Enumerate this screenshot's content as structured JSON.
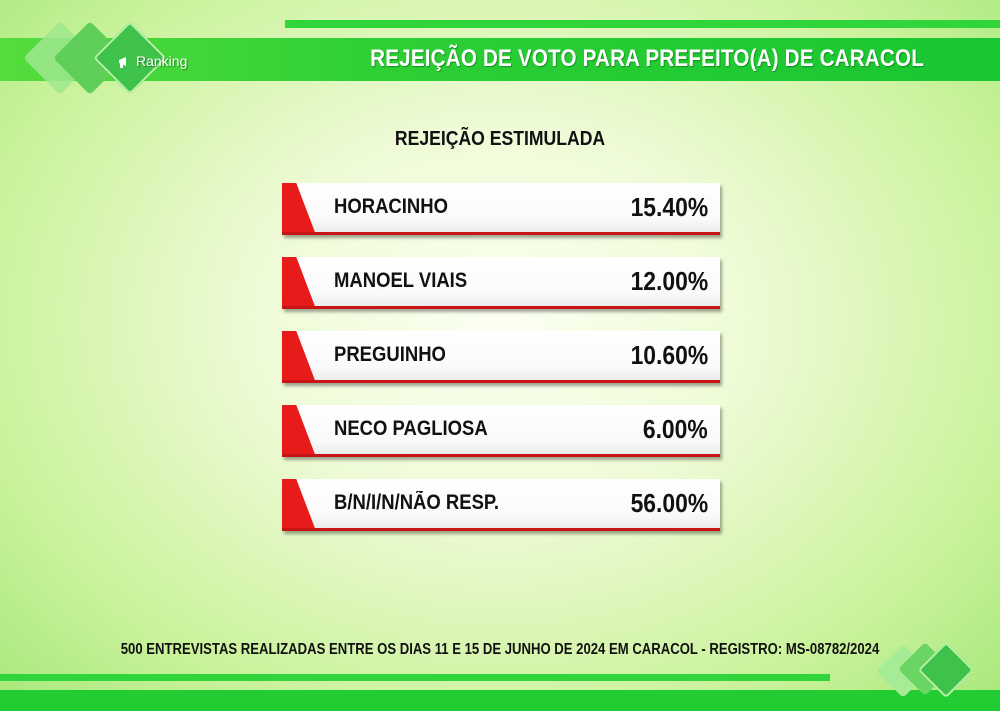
{
  "header": {
    "title": "REJEIÇÃO DE VOTO PARA PREFEITO(A) DE CARACOL",
    "logo_text": "Ranking",
    "logo_icon": "megaphone-icon"
  },
  "chart_data": {
    "type": "bar",
    "title": "REJEIÇÃO ESTIMULADA",
    "categories": [
      "HORACINHO",
      "MANOEL VIAIS",
      "PREGUINHO",
      "NECO PAGLIOSA",
      "B/N/I/N/NÃO RESP."
    ],
    "values": [
      15.4,
      12.0,
      10.6,
      6.0,
      56.0
    ],
    "value_labels": [
      "15.40%",
      "12.00%",
      "10.60%",
      "6.00%",
      "56.00%"
    ],
    "unit": "%"
  },
  "footer": {
    "note": "500 ENTREVISTAS REALIZADAS ENTRE OS DIAS 11 E 15 DE JUNHO DE 2024 EM CARACOL - REGISTRO: MS-08782/2024"
  },
  "colors": {
    "accent_green": "#2ccf34",
    "bar_accent_red": "#e81b1b"
  }
}
